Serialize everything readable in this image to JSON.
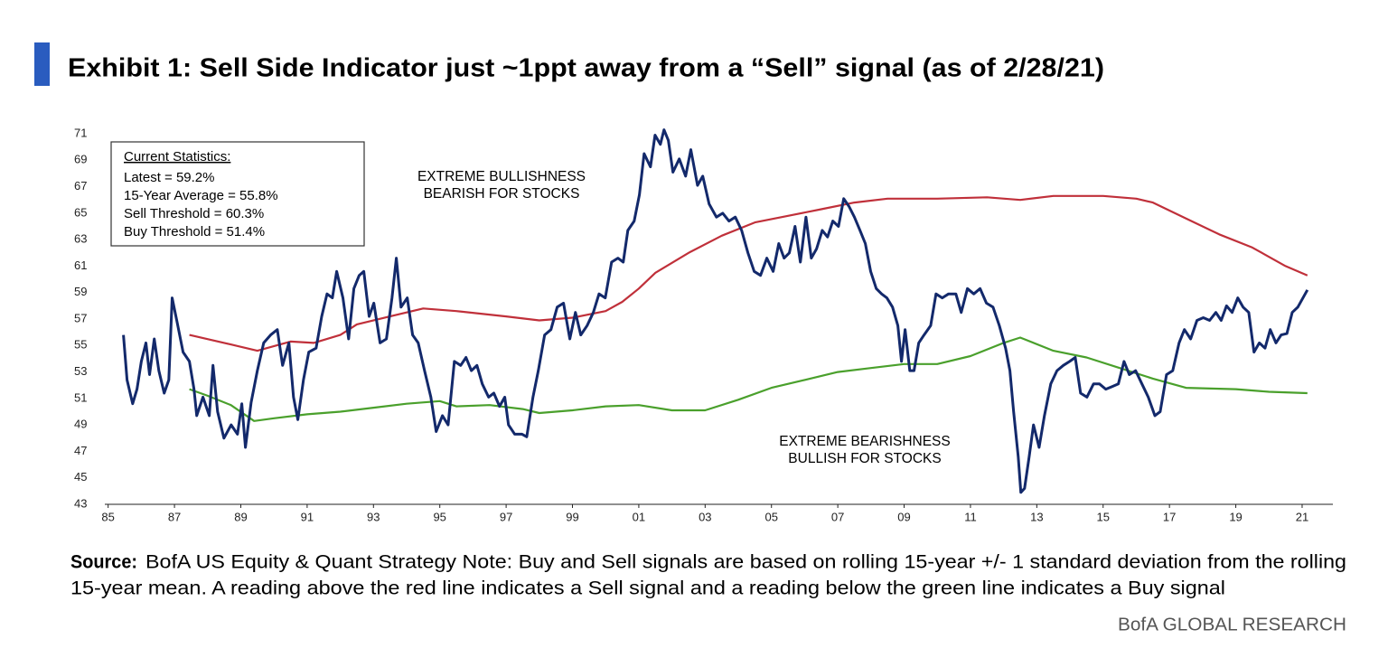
{
  "chart_data": {
    "type": "line",
    "title": "Exhibit 1: Sell Side Indicator just ~1ppt away from a “Sell” signal (as of 2/28/21)",
    "stats": {
      "heading": "Current Statistics:",
      "lines": [
        "Latest = 59.2%",
        "15-Year Average = 55.8%",
        "Sell Threshold = 60.3%",
        "Buy Threshold = 51.4%"
      ]
    },
    "annotations": {
      "top": [
        "EXTREME BULLISHNESS",
        "BEARISH FOR STOCKS"
      ],
      "bottom": [
        "EXTREME BEARISHNESS",
        "BULLISH FOR STOCKS"
      ]
    },
    "source": {
      "label": "Source:",
      "lines": [
        "BofA US Equity & Quant Strategy Note: Buy and Sell signals are based on rolling 15-year +/- 1 standard deviation from the rolling",
        "15-year mean. A reading above the red line indicates a Sell signal and a reading below the green line indicates a Buy signal"
      ]
    },
    "footer": "BofA GLOBAL RESEARCH",
    "xlim": [
      1984.9,
      2021.9
    ],
    "ylim": [
      43,
      71
    ],
    "yticks": [
      43,
      45,
      47,
      49,
      51,
      53,
      55,
      57,
      59,
      61,
      63,
      65,
      67,
      69,
      71
    ],
    "xticks": [
      {
        "value": 1985,
        "label": "85"
      },
      {
        "value": 1987,
        "label": "87"
      },
      {
        "value": 1989,
        "label": "89"
      },
      {
        "value": 1991,
        "label": "91"
      },
      {
        "value": 1993,
        "label": "93"
      },
      {
        "value": 1995,
        "label": "95"
      },
      {
        "value": 1997,
        "label": "97"
      },
      {
        "value": 1999,
        "label": "99"
      },
      {
        "value": 2001,
        "label": "01"
      },
      {
        "value": 2003,
        "label": "03"
      },
      {
        "value": 2005,
        "label": "05"
      },
      {
        "value": 2007,
        "label": "07"
      },
      {
        "value": 2009,
        "label": "09"
      },
      {
        "value": 2011,
        "label": "11"
      },
      {
        "value": 2013,
        "label": "13"
      },
      {
        "value": 2015,
        "label": "15"
      },
      {
        "value": 2017,
        "label": "17"
      },
      {
        "value": 2019,
        "label": "19"
      },
      {
        "value": 2021,
        "label": "21"
      }
    ],
    "series": [
      {
        "color": "#c0303a",
        "x": [
          1987.45,
          1988.5,
          1989.5,
          1990.5,
          1991.2,
          1992,
          1992.5,
          1993.5,
          1994.5,
          1995.5,
          1997,
          1998,
          1999,
          2000,
          2000.5,
          2001,
          2001.5,
          2002.5,
          2003.5,
          2004.5,
          2005.5,
          2006.5,
          2007.5,
          2008.5,
          2010,
          2011.5,
          2012.5,
          2013.5,
          2015,
          2016,
          2016.5,
          2017.5,
          2018.5,
          2019.5,
          2020.5,
          2021.16
        ],
        "values": [
          55.8,
          55.2,
          54.6,
          55.3,
          55.2,
          55.8,
          56.6,
          57.2,
          57.8,
          57.6,
          57.2,
          56.9,
          57.1,
          57.6,
          58.3,
          59.3,
          60.5,
          62,
          63.3,
          64.3,
          64.8,
          65.3,
          65.8,
          66.1,
          66.1,
          66.2,
          66.0,
          66.3,
          66.3,
          66.1,
          65.8,
          64.6,
          63.4,
          62.4,
          61.0,
          60.3
        ]
      },
      {
        "color": "#4aa02c",
        "x": [
          1987.45,
          1988,
          1988.7,
          1989.4,
          1990,
          1991,
          1992,
          1993,
          1994,
          1995,
          1995.5,
          1996.5,
          1997.5,
          1998,
          1999,
          2000,
          2001,
          2002,
          2003,
          2004,
          2005,
          2006,
          2007,
          2008,
          2009,
          2010,
          2011,
          2012,
          2012.5,
          2013.5,
          2014.5,
          2015.5,
          2016.5,
          2017.5,
          2019,
          2020,
          2021.16
        ],
        "values": [
          51.7,
          51.2,
          50.5,
          49.3,
          49.5,
          49.8,
          50.0,
          50.3,
          50.6,
          50.8,
          50.4,
          50.5,
          50.2,
          49.9,
          50.1,
          50.4,
          50.5,
          50.1,
          50.1,
          50.9,
          51.8,
          52.4,
          53.0,
          53.3,
          53.6,
          53.6,
          54.2,
          55.2,
          55.6,
          54.6,
          54.1,
          53.3,
          52.5,
          51.8,
          51.7,
          51.5,
          51.4
        ]
      },
      {
        "color": "#13296b",
        "x": [
          1985.46,
          1985.57,
          1985.74,
          1985.87,
          1986.0,
          1986.14,
          1986.25,
          1986.39,
          1986.53,
          1986.69,
          1986.83,
          1986.93,
          1987.07,
          1987.26,
          1987.45,
          1987.59,
          1987.67,
          1987.86,
          1988.05,
          1988.16,
          1988.3,
          1988.49,
          1988.71,
          1988.9,
          1989.03,
          1989.14,
          1989.31,
          1989.5,
          1989.69,
          1989.9,
          1990.1,
          1990.26,
          1990.45,
          1990.59,
          1990.72,
          1990.89,
          1991.05,
          1991.27,
          1991.44,
          1991.6,
          1991.76,
          1991.89,
          1992.08,
          1992.25,
          1992.41,
          1992.57,
          1992.71,
          1992.87,
          1993.01,
          1993.2,
          1993.39,
          1993.56,
          1993.69,
          1993.83,
          1994.02,
          1994.18,
          1994.35,
          1994.54,
          1994.73,
          1994.89,
          1995.08,
          1995.25,
          1995.44,
          1995.63,
          1995.79,
          1995.95,
          1996.12,
          1996.28,
          1996.47,
          1996.63,
          1996.8,
          1996.96,
          1997.07,
          1997.26,
          1997.48,
          1997.62,
          1997.81,
          1997.97,
          1998.16,
          1998.35,
          1998.54,
          1998.73,
          1998.92,
          1999.09,
          1999.25,
          1999.44,
          1999.63,
          1999.8,
          1999.99,
          2000.18,
          2000.37,
          2000.53,
          2000.67,
          2000.86,
          2001.02,
          2001.16,
          2001.35,
          2001.49,
          2001.65,
          2001.76,
          2001.89,
          2002.03,
          2002.22,
          2002.41,
          2002.57,
          2002.77,
          2002.93,
          2003.12,
          2003.34,
          2003.53,
          2003.72,
          2003.91,
          2004.1,
          2004.29,
          2004.48,
          2004.67,
          2004.86,
          2005.05,
          2005.22,
          2005.38,
          2005.54,
          2005.71,
          2005.87,
          2006.04,
          2006.2,
          2006.36,
          2006.53,
          2006.69,
          2006.85,
          2007.02,
          2007.18,
          2007.34,
          2007.5,
          2007.67,
          2007.83,
          2007.99,
          2008.16,
          2008.32,
          2008.48,
          2008.65,
          2008.81,
          2008.92,
          2009.03,
          2009.17,
          2009.3,
          2009.44,
          2009.6,
          2009.8,
          2009.96,
          2010.15,
          2010.34,
          2010.56,
          2010.72,
          2010.91,
          2011.1,
          2011.29,
          2011.48,
          2011.68,
          2011.87,
          2012.06,
          2012.19,
          2012.3,
          2012.44,
          2012.52,
          2012.63,
          2012.77,
          2012.9,
          2013.07,
          2013.23,
          2013.42,
          2013.61,
          2013.8,
          2013.99,
          2014.16,
          2014.32,
          2014.51,
          2014.71,
          2014.89,
          2015.08,
          2015.27,
          2015.46,
          2015.63,
          2015.79,
          2015.98,
          2016.17,
          2016.36,
          2016.56,
          2016.72,
          2016.91,
          2017.1,
          2017.29,
          2017.45,
          2017.64,
          2017.83,
          2018.02,
          2018.21,
          2018.4,
          2018.56,
          2018.72,
          2018.89,
          2019.06,
          2019.22,
          2019.39,
          2019.55,
          2019.71,
          2019.88,
          2020.04,
          2020.21,
          2020.37,
          2020.54,
          2020.7,
          2020.87,
          2021.16
        ],
        "values": [
          55.8,
          52.4,
          50.6,
          51.7,
          53.8,
          55.2,
          52.8,
          55.5,
          53.1,
          51.4,
          52.4,
          58.6,
          56.9,
          54.5,
          53.8,
          51.7,
          49.7,
          51.1,
          49.7,
          53.5,
          50.0,
          48.0,
          49.0,
          48.3,
          50.6,
          47.3,
          50.7,
          53.1,
          55.2,
          55.8,
          56.2,
          53.5,
          55.2,
          51.1,
          49.4,
          52.4,
          54.5,
          54.8,
          57.2,
          58.9,
          58.6,
          60.6,
          58.6,
          55.5,
          59.3,
          60.3,
          60.6,
          57.2,
          58.2,
          55.2,
          55.5,
          58.6,
          61.6,
          57.9,
          58.6,
          55.8,
          55.2,
          53.1,
          51.1,
          48.5,
          49.7,
          49.0,
          53.8,
          53.5,
          54.1,
          53.1,
          53.5,
          52.1,
          51.1,
          51.4,
          50.4,
          51.1,
          49.0,
          48.3,
          48.3,
          48.1,
          51.1,
          53.1,
          55.8,
          56.2,
          57.9,
          58.2,
          55.5,
          57.5,
          55.8,
          56.5,
          57.5,
          58.9,
          58.6,
          61.3,
          61.6,
          61.3,
          63.7,
          64.4,
          66.4,
          69.5,
          68.5,
          70.9,
          70.2,
          71.3,
          70.5,
          68.1,
          69.1,
          67.8,
          69.8,
          67.1,
          67.8,
          65.7,
          64.7,
          65.0,
          64.4,
          64.7,
          63.7,
          62.0,
          60.6,
          60.3,
          61.6,
          60.6,
          62.7,
          61.6,
          62.0,
          64.0,
          61.3,
          64.7,
          61.6,
          62.3,
          63.7,
          63.2,
          64.4,
          64.0,
          66.1,
          65.5,
          64.7,
          63.7,
          62.7,
          60.6,
          59.3,
          58.9,
          58.6,
          57.9,
          56.5,
          53.8,
          56.2,
          53.1,
          53.1,
          55.2,
          55.8,
          56.5,
          58.9,
          58.6,
          58.9,
          58.9,
          57.5,
          59.3,
          58.9,
          59.3,
          58.2,
          57.9,
          56.5,
          54.8,
          53.1,
          50.0,
          46.6,
          43.9,
          44.2,
          46.6,
          49.0,
          47.3,
          49.7,
          52.1,
          53.1,
          53.5,
          53.8,
          54.1,
          51.4,
          51.1,
          52.1,
          52.1,
          51.7,
          51.9,
          52.1,
          53.8,
          52.8,
          53.1,
          52.1,
          51.1,
          49.7,
          50.0,
          52.8,
          53.1,
          55.2,
          56.2,
          55.5,
          56.9,
          57.1,
          56.9,
          57.5,
          56.9,
          58.0,
          57.5,
          58.6,
          57.9,
          57.5,
          54.5,
          55.2,
          54.8,
          56.2,
          55.2,
          55.8,
          55.9,
          57.5,
          57.9,
          59.2
        ]
      }
    ]
  }
}
